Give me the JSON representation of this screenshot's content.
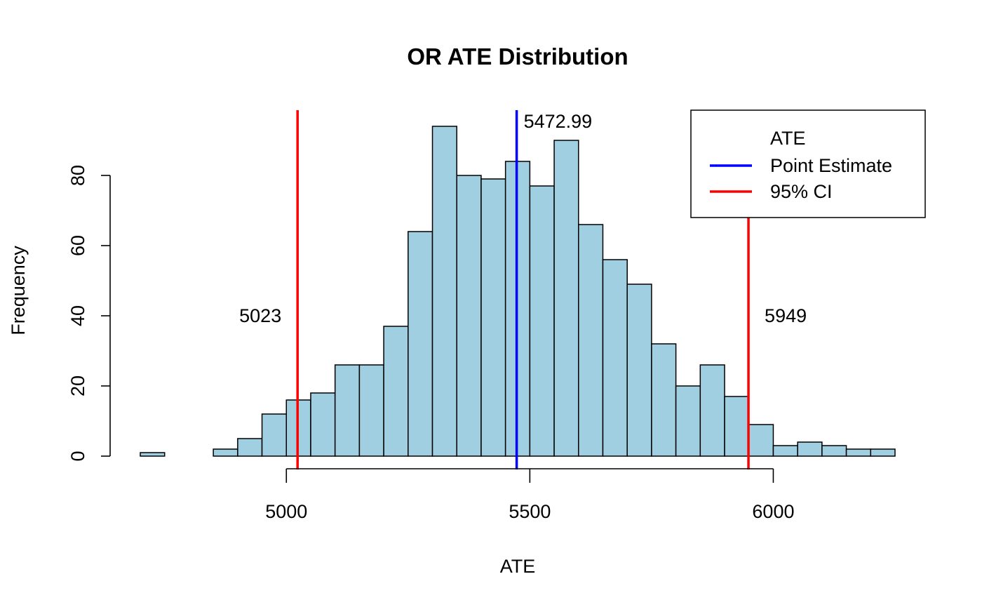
{
  "chart_data": {
    "type": "bar",
    "title": "OR ATE Distribution",
    "xlabel": "ATE",
    "ylabel": "Frequency",
    "bin_width": 50,
    "bins": [
      {
        "x0": 4700,
        "x1": 4750,
        "count": 1
      },
      {
        "x0": 4750,
        "x1": 4800,
        "count": 0
      },
      {
        "x0": 4800,
        "x1": 4850,
        "count": 0
      },
      {
        "x0": 4850,
        "x1": 4900,
        "count": 2
      },
      {
        "x0": 4900,
        "x1": 4950,
        "count": 5
      },
      {
        "x0": 4950,
        "x1": 5000,
        "count": 12
      },
      {
        "x0": 5000,
        "x1": 5050,
        "count": 16
      },
      {
        "x0": 5050,
        "x1": 5100,
        "count": 18
      },
      {
        "x0": 5100,
        "x1": 5150,
        "count": 26
      },
      {
        "x0": 5150,
        "x1": 5200,
        "count": 26
      },
      {
        "x0": 5200,
        "x1": 5250,
        "count": 37
      },
      {
        "x0": 5250,
        "x1": 5300,
        "count": 64
      },
      {
        "x0": 5300,
        "x1": 5350,
        "count": 94
      },
      {
        "x0": 5350,
        "x1": 5400,
        "count": 80
      },
      {
        "x0": 5400,
        "x1": 5450,
        "count": 79
      },
      {
        "x0": 5450,
        "x1": 5500,
        "count": 84
      },
      {
        "x0": 5500,
        "x1": 5550,
        "count": 77
      },
      {
        "x0": 5550,
        "x1": 5600,
        "count": 90
      },
      {
        "x0": 5600,
        "x1": 5650,
        "count": 66
      },
      {
        "x0": 5650,
        "x1": 5700,
        "count": 56
      },
      {
        "x0": 5700,
        "x1": 5750,
        "count": 49
      },
      {
        "x0": 5750,
        "x1": 5800,
        "count": 32
      },
      {
        "x0": 5800,
        "x1": 5850,
        "count": 20
      },
      {
        "x0": 5850,
        "x1": 5900,
        "count": 26
      },
      {
        "x0": 5900,
        "x1": 5950,
        "count": 17
      },
      {
        "x0": 5950,
        "x1": 6000,
        "count": 9
      },
      {
        "x0": 6000,
        "x1": 6050,
        "count": 3
      },
      {
        "x0": 6050,
        "x1": 6100,
        "count": 4
      },
      {
        "x0": 6100,
        "x1": 6150,
        "count": 3
      },
      {
        "x0": 6150,
        "x1": 6200,
        "count": 2
      },
      {
        "x0": 6200,
        "x1": 6250,
        "count": 2
      }
    ],
    "xlim": [
      4700,
      6250
    ],
    "ylim": [
      0,
      100
    ],
    "x_ticks": [
      {
        "value": 5000,
        "label": "5000"
      },
      {
        "value": 5500,
        "label": "5500"
      },
      {
        "value": 6000,
        "label": "6000"
      }
    ],
    "y_ticks": [
      {
        "value": 0,
        "label": "0"
      },
      {
        "value": 20,
        "label": "20"
      },
      {
        "value": 40,
        "label": "40"
      },
      {
        "value": 60,
        "label": "60"
      },
      {
        "value": 80,
        "label": "80"
      }
    ],
    "bar_color": "#9fcfe0",
    "grid": false,
    "lines": [
      {
        "kind": "point_estimate",
        "value": 5472.99,
        "label": "5472.99",
        "color": "#0000ff"
      },
      {
        "kind": "ci_lower",
        "value": 5023,
        "label": "5023",
        "color": "#ff0000"
      },
      {
        "kind": "ci_upper",
        "value": 5949,
        "label": "5949",
        "color": "#ff0000"
      }
    ],
    "legend": {
      "placement": "top-right",
      "title": "ATE",
      "items": [
        {
          "label": "Point Estimate",
          "color": "#0000ff"
        },
        {
          "label": "95% CI",
          "color": "#ff0000"
        }
      ]
    }
  }
}
